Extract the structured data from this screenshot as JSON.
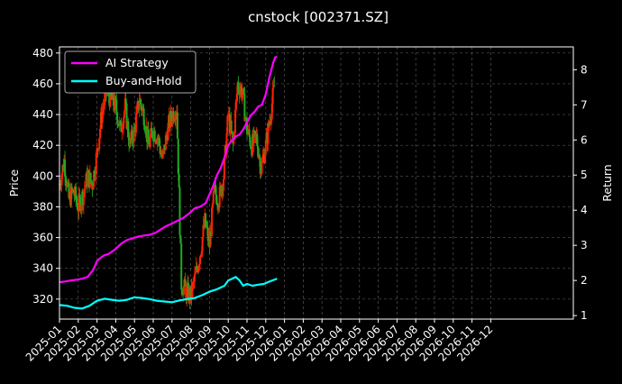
{
  "chart_data": {
    "type": "line",
    "title": "cnstock [002371.SZ]",
    "xlabel": "",
    "ylabel_left": "Price",
    "ylabel_right": "Return",
    "ylim_left": [
      307,
      484
    ],
    "ylim_right": [
      0.9,
      8.65
    ],
    "yticks_left": [
      "320",
      "340",
      "360",
      "380",
      "400",
      "420",
      "440",
      "460",
      "480"
    ],
    "yticks_right": [
      "1",
      "2",
      "3",
      "4",
      "5",
      "6",
      "7",
      "8"
    ],
    "xticks": [
      "2025-01",
      "2025-02",
      "2025-03",
      "2025-04",
      "2025-05",
      "2025-06",
      "2025-07",
      "2025-08",
      "2025-09",
      "2025-10",
      "2025-11",
      "2025-12",
      "2026-01",
      "2026-02",
      "2026-03",
      "2026-04",
      "2026-05",
      "2026-06",
      "2026-07",
      "2026-08",
      "2026-09",
      "2026-10",
      "2026-11",
      "2026-12"
    ],
    "grid": true,
    "legend_position": "top-left",
    "colors": {
      "background": "#000000",
      "up_candle": "#ff2200",
      "down_candle": "#22aa22",
      "ai_strategy": "#ff00ff",
      "buy_and_hold": "#00ffff",
      "grid": "#555555"
    },
    "series": [
      {
        "name": "AI Strategy",
        "axis": "right",
        "x": [
          0,
          0.3,
          0.6,
          0.9,
          1.2,
          1.5,
          1.8,
          2.0,
          2.2,
          2.4,
          2.6,
          2.8,
          3.0,
          3.3,
          3.6,
          3.9,
          4.2,
          4.5,
          4.8,
          5.1,
          5.4,
          5.7,
          6.0,
          6.3,
          6.6,
          6.9,
          7.2,
          7.5,
          7.8,
          8.0,
          8.2,
          8.4,
          8.6,
          8.8,
          9.0,
          9.2,
          9.4,
          9.6,
          9.8,
          10.0,
          10.2,
          10.4,
          10.6,
          10.8,
          11.0,
          11.2,
          11.4,
          11.5,
          11.6
        ],
        "values": [
          1.95,
          1.97,
          2.0,
          2.02,
          2.05,
          2.1,
          2.3,
          2.55,
          2.65,
          2.72,
          2.75,
          2.82,
          2.9,
          3.05,
          3.15,
          3.2,
          3.25,
          3.28,
          3.3,
          3.35,
          3.45,
          3.55,
          3.62,
          3.7,
          3.78,
          3.9,
          4.05,
          4.1,
          4.2,
          4.45,
          4.7,
          5.0,
          5.2,
          5.5,
          5.85,
          6.0,
          6.1,
          6.15,
          6.3,
          6.5,
          6.7,
          6.8,
          6.95,
          7.0,
          7.3,
          7.8,
          8.2,
          8.35,
          8.37
        ]
      },
      {
        "name": "Buy-and-Hold",
        "axis": "right",
        "x": [
          0,
          0.4,
          0.8,
          1.2,
          1.6,
          2.0,
          2.4,
          2.8,
          3.2,
          3.6,
          4.0,
          4.4,
          4.8,
          5.2,
          5.6,
          6.0,
          6.4,
          6.8,
          7.2,
          7.6,
          8.0,
          8.4,
          8.8,
          9.0,
          9.2,
          9.4,
          9.6,
          9.8,
          10.0,
          10.3,
          10.6,
          10.9,
          11.2,
          11.5,
          11.6
        ],
        "values": [
          1.3,
          1.28,
          1.22,
          1.2,
          1.28,
          1.42,
          1.48,
          1.45,
          1.42,
          1.45,
          1.52,
          1.5,
          1.47,
          1.42,
          1.4,
          1.38,
          1.43,
          1.47,
          1.5,
          1.58,
          1.68,
          1.75,
          1.85,
          2.0,
          2.05,
          2.1,
          2.0,
          1.85,
          1.9,
          1.85,
          1.88,
          1.9,
          1.97,
          2.03,
          2.05
        ]
      },
      {
        "name": "",
        "axis": "left",
        "kind": "candlestick_close",
        "x": [
          0,
          0.25,
          0.5,
          0.75,
          1.0,
          1.25,
          1.5,
          1.75,
          2.0,
          2.25,
          2.5,
          2.75,
          3.0,
          3.25,
          3.5,
          3.75,
          4.0,
          4.25,
          4.5,
          4.75,
          5.0,
          5.25,
          5.5,
          5.75,
          6.0,
          6.25,
          6.5,
          6.75,
          7.0,
          7.25,
          7.5,
          7.75,
          8.0,
          8.25,
          8.5,
          8.75,
          9.0,
          9.25,
          9.5,
          9.75,
          10.0,
          10.25,
          10.5,
          10.75,
          11.0,
          11.25,
          11.5
        ],
        "values": [
          395,
          410,
          385,
          390,
          380,
          388,
          400,
          395,
          415,
          440,
          455,
          450,
          445,
          430,
          445,
          420,
          430,
          450,
          440,
          420,
          430,
          425,
          410,
          430,
          440,
          445,
          330,
          325,
          322,
          335,
          350,
          370,
          355,
          390,
          385,
          400,
          440,
          420,
          460,
          455,
          430,
          420,
          425,
          405,
          420,
          440,
          462
        ]
      }
    ]
  }
}
